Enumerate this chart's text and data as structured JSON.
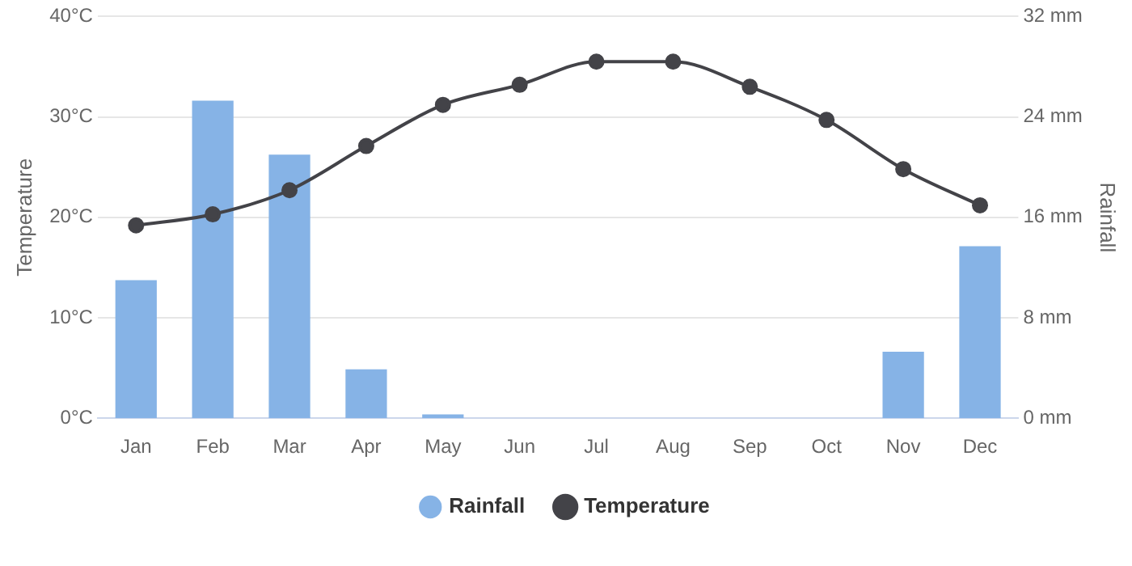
{
  "chart_data": {
    "type": "bar",
    "categories": [
      "Jan",
      "Feb",
      "Mar",
      "Apr",
      "May",
      "Jun",
      "Jul",
      "Aug",
      "Sep",
      "Oct",
      "Nov",
      "Dec"
    ],
    "series": [
      {
        "name": "Rainfall",
        "axis": "y2",
        "color": "#86b3e6",
        "values": [
          11.0,
          25.3,
          21.0,
          3.9,
          0.3,
          0,
          0,
          0,
          0,
          0,
          5.3,
          13.7
        ]
      },
      {
        "name": "Temperature",
        "type": "line",
        "color": "#434348",
        "marker": "circle",
        "values": [
          19.2,
          20.3,
          22.7,
          27.1,
          31.2,
          33.2,
          35.5,
          35.5,
          33.0,
          29.7,
          24.8,
          21.2
        ]
      }
    ],
    "ylabel": "Temperature",
    "y2label": "Rainfall",
    "ylim": [
      0,
      40
    ],
    "yticks": [
      {
        "value": 0,
        "label": "0°C"
      },
      {
        "value": 10,
        "label": "10°C"
      },
      {
        "value": 20,
        "label": "20°C"
      },
      {
        "value": 30,
        "label": "30°C"
      },
      {
        "value": 40,
        "label": "40°C"
      }
    ],
    "y2lim": [
      0,
      32
    ],
    "y2ticks": [
      {
        "value": 0,
        "label": "0 mm"
      },
      {
        "value": 8,
        "label": "8 mm"
      },
      {
        "value": 16,
        "label": "16 mm"
      },
      {
        "value": 24,
        "label": "24 mm"
      },
      {
        "value": 32,
        "label": "32 mm"
      }
    ],
    "grid": "y",
    "legend": "bottom"
  }
}
